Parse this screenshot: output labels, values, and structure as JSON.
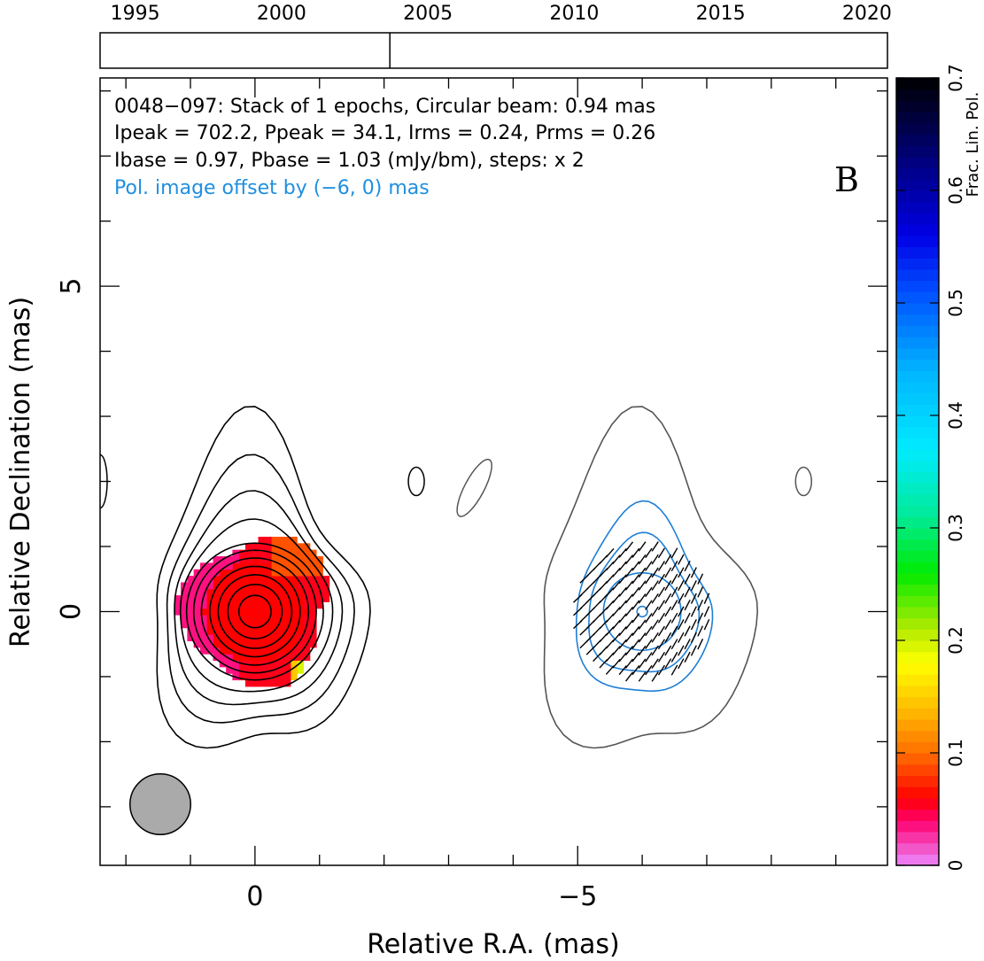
{
  "chart_data": {
    "type": "contour",
    "info_lines": [
      "0048−097: Stack of 1 epochs, Circular beam: 0.94 mas",
      "Ipeak = 702.2, Ppeak = 34.1, Irms = 0.24, Prms = 0.26",
      "Ibase = 0.97, Pbase = 1.03 (mJy/bm), steps: x 2"
    ],
    "offset_note": "Pol. image offset by (−6, 0) mas",
    "panel_label": "B",
    "xlabel": "Relative R.A. (mas)",
    "ylabel": "Relative Declination (mas)",
    "colorbar_label": "Frac. Lin. Pol.",
    "xlim": [
      2.4,
      -9.8
    ],
    "ylim": [
      -3.9,
      8.2
    ],
    "x_ticks": [
      0,
      -5
    ],
    "x_tick_labels": [
      "0",
      "−5"
    ],
    "y_ticks": [
      0,
      5
    ],
    "y_tick_labels": [
      "0",
      "5"
    ],
    "timeline": {
      "range": [
        1993.8,
        2020.7
      ],
      "tick_years": [
        1995,
        2000,
        2005,
        2010,
        2015,
        2020
      ],
      "tick_labels": [
        "1995",
        "2000",
        "2005",
        "2010",
        "2015",
        "2020"
      ],
      "epoch_years": [
        2003.7
      ]
    },
    "colorbar": {
      "range": [
        0,
        0.7
      ],
      "ticks": [
        0,
        0.1,
        0.2,
        0.3,
        0.4,
        0.5,
        0.6,
        0.7
      ],
      "tick_labels": [
        "0",
        "0.1",
        "0.2",
        "0.3",
        "0.4",
        "0.5",
        "0.6",
        "0.7"
      ]
    },
    "beam_diameter_mas": 0.94,
    "contour_radii_mas": [
      0.25,
      0.42,
      0.57,
      0.7,
      0.83,
      0.95,
      1.06,
      1.18,
      1.3,
      1.45,
      1.65
    ],
    "pol_contour_radii_mas": [
      0.08,
      0.6,
      0.85,
      1.05
    ],
    "colors": {
      "total_intensity": "#000000",
      "polarization_contours": "#1f7fd6",
      "offset_note": "#1f8fe0",
      "shifted_contour": "#555555",
      "beam": "#aaaaaa",
      "fraclin_dominant": "#ff1a00"
    }
  }
}
